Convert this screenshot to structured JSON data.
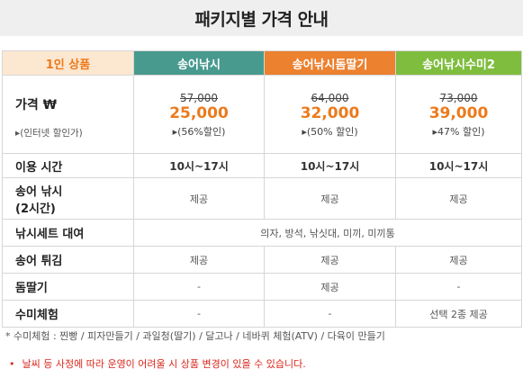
{
  "title": "패키지별 가격 안내",
  "header": {
    "label": "1인 상품",
    "packages": [
      "송어낚시",
      "송어낚시돔딸기",
      "송어낚시수미2"
    ]
  },
  "price_row": {
    "label": "가격 ₩",
    "sub": "▸(인터넷 할인가)",
    "items": [
      {
        "original": "57,000",
        "sale": "25,000",
        "discount": "▸(56%할인)"
      },
      {
        "original": "64,000",
        "sale": "32,000",
        "discount": "▸(50% 할인)"
      },
      {
        "original": "73,000",
        "sale": "39,000",
        "discount": "▸47% 할인)"
      }
    ]
  },
  "rows": [
    {
      "label": "이용 시간",
      "values": [
        "10시~17시",
        "10시~17시",
        "10시~17시"
      ]
    },
    {
      "label_lines": [
        "송어 낚시",
        "(2시간)"
      ],
      "values": [
        "제공",
        "제공",
        "제공"
      ]
    },
    {
      "label": "낚시세트 대여",
      "merged": "의자, 방석, 낚싯대, 미끼, 미끼통"
    },
    {
      "label": "송어 튀김",
      "values": [
        "제공",
        "제공",
        "제공"
      ]
    },
    {
      "label": "돔딸기",
      "values": [
        "-",
        "제공",
        "-"
      ]
    },
    {
      "label": "수미체험",
      "values": [
        "-",
        "-",
        "선택 2종 제공"
      ]
    }
  ],
  "footnote": "* 수미체험 : 찐빵 /  피자만들기 / 과일청(딸기) / 달고나 / 네바퀴 체험(ATV)  / 다육이 만들기",
  "warning": {
    "bullet": "•",
    "text": "날씨 등 사정에 따라 운영이 어려울 시 상품 변경이 있을 수 있습니다."
  }
}
